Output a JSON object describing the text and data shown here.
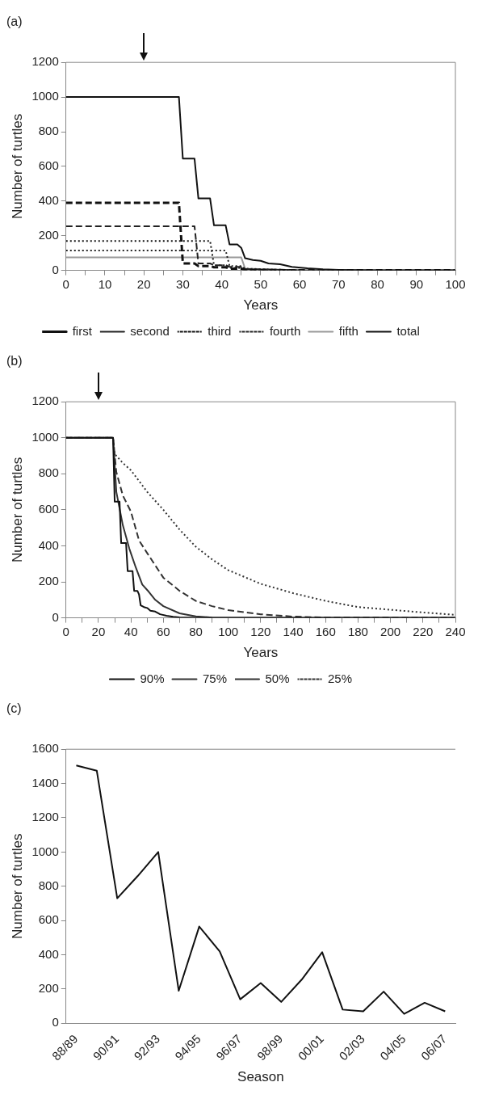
{
  "chart_data": [
    {
      "type": "line",
      "title": "(a)",
      "xlabel": "Years",
      "ylabel": "Number of turtles",
      "xlim": [
        0,
        100
      ],
      "ylim": [
        0,
        1200
      ],
      "yticks": [
        0,
        200,
        400,
        600,
        800,
        1000,
        1200
      ],
      "xticks": [
        0,
        {
          "value": 5,
          "label": null
        },
        10,
        {
          "value": 15,
          "label": null
        },
        20,
        {
          "value": 25,
          "label": null
        },
        30,
        {
          "value": 35,
          "label": null
        },
        40,
        {
          "value": 45,
          "label": null
        },
        50,
        {
          "value": 55,
          "label": null
        },
        60,
        {
          "value": 65,
          "label": null
        },
        70,
        {
          "value": 75,
          "label": null
        },
        80,
        {
          "value": 85,
          "label": null
        },
        90,
        {
          "value": 95,
          "label": null
        },
        100
      ],
      "grid": false,
      "legend": "bottom",
      "marker": "none",
      "series": [
        {
          "name": "first",
          "color": "#111111",
          "line_style": "dashed",
          "x": [
            0,
            29,
            30,
            33,
            34,
            37,
            38,
            41,
            42,
            45,
            46,
            60,
            100
          ],
          "values": [
            390,
            390,
            40,
            40,
            25,
            25,
            18,
            18,
            10,
            10,
            3,
            0,
            0
          ]
        },
        {
          "name": "second",
          "color": "#222222",
          "line_style": "dashed",
          "x": [
            0,
            33,
            34,
            37,
            38,
            41,
            42,
            45,
            46,
            60,
            100
          ],
          "values": [
            255,
            255,
            40,
            40,
            30,
            30,
            20,
            20,
            8,
            0,
            0
          ]
        },
        {
          "name": "third",
          "color": "#111111",
          "line_style": "dotted",
          "x": [
            0,
            37,
            38,
            41,
            42,
            45,
            46,
            60
          ],
          "values": [
            170,
            170,
            30,
            30,
            15,
            15,
            5,
            0
          ]
        },
        {
          "name": "fourth",
          "color": "#222222",
          "line_style": "dotted",
          "x": [
            0,
            41,
            42,
            45,
            46,
            60
          ],
          "values": [
            115,
            115,
            25,
            25,
            10,
            0
          ]
        },
        {
          "name": "fifth",
          "color": "#999999",
          "line_style": "solid",
          "x": [
            0,
            45,
            46,
            60
          ],
          "values": [
            75,
            75,
            10,
            0
          ]
        },
        {
          "name": "total",
          "color": "#111111",
          "line_style": "solid",
          "x": [
            0,
            29,
            30,
            33,
            34,
            37,
            38,
            41,
            42,
            44,
            45,
            46,
            48,
            50,
            52,
            55,
            58,
            62,
            66,
            70,
            80,
            100
          ],
          "values": [
            1000,
            1000,
            645,
            645,
            415,
            415,
            260,
            260,
            150,
            150,
            130,
            70,
            60,
            55,
            40,
            35,
            20,
            12,
            6,
            3,
            0,
            0
          ]
        }
      ]
    },
    {
      "type": "line",
      "title": "(b)",
      "xlabel": "Years",
      "ylabel": "Number of turtles",
      "xlim": [
        0,
        240
      ],
      "ylim": [
        0,
        1200
      ],
      "yticks": [
        0,
        200,
        400,
        600,
        800,
        1000,
        1200
      ],
      "xticks": [
        0,
        {
          "value": 10,
          "label": null
        },
        20,
        {
          "value": 30,
          "label": null
        },
        40,
        {
          "value": 50,
          "label": null
        },
        60,
        {
          "value": 70,
          "label": null
        },
        80,
        {
          "value": 90,
          "label": null
        },
        100,
        {
          "value": 110,
          "label": null
        },
        120,
        {
          "value": 130,
          "label": null
        },
        140,
        {
          "value": 150,
          "label": null
        },
        160,
        {
          "value": 170,
          "label": null
        },
        180,
        {
          "value": 190,
          "label": null
        },
        200,
        {
          "value": 210,
          "label": null
        },
        220,
        {
          "value": 230,
          "label": null
        },
        240
      ],
      "grid": false,
      "legend": "bottom",
      "marker": "none",
      "series": [
        {
          "name": "90%",
          "color": "#111111",
          "line_style": "solid",
          "x": [
            0,
            29,
            30,
            33,
            34,
            37,
            38,
            41,
            42,
            44,
            45,
            46,
            48,
            50,
            52,
            55,
            58,
            62,
            66,
            70,
            80,
            100,
            240
          ],
          "values": [
            1000,
            1000,
            645,
            645,
            415,
            415,
            260,
            260,
            150,
            150,
            130,
            70,
            60,
            55,
            40,
            35,
            20,
            12,
            6,
            3,
            0,
            0,
            0
          ]
        },
        {
          "name": "75%",
          "color": "#333333",
          "line_style": "solid",
          "x": [
            0,
            29,
            31,
            35,
            39,
            43,
            47,
            51,
            55,
            60,
            70,
            80,
            90,
            100,
            240
          ],
          "values": [
            1000,
            1000,
            700,
            515,
            385,
            280,
            185,
            145,
            100,
            65,
            25,
            8,
            2,
            0,
            0
          ]
        },
        {
          "name": "50%",
          "color": "#333333",
          "line_style": "dashed",
          "x": [
            0,
            29,
            31,
            35,
            40,
            45,
            50,
            60,
            70,
            80,
            90,
            100,
            120,
            140,
            160,
            240
          ],
          "values": [
            1000,
            1000,
            810,
            680,
            590,
            430,
            360,
            223,
            150,
            94,
            65,
            43,
            20,
            7,
            2,
            0
          ]
        },
        {
          "name": "25%",
          "color": "#333333",
          "line_style": "dotted",
          "x": [
            0,
            29,
            30,
            35,
            40,
            50,
            60,
            70,
            80,
            90,
            100,
            120,
            140,
            160,
            180,
            200,
            220,
            240
          ],
          "values": [
            1000,
            1000,
            910,
            860,
            820,
            700,
            600,
            490,
            395,
            325,
            265,
            189,
            137,
            94,
            60,
            45,
            30,
            17
          ]
        }
      ]
    },
    {
      "type": "line",
      "title": "(c)",
      "xlabel": "Season",
      "ylabel": "Number of turtles",
      "ylim": [
        0,
        1600
      ],
      "yticks": [
        0,
        200,
        400,
        600,
        800,
        1000,
        1200,
        1400,
        1600
      ],
      "grid": false,
      "marker": "none",
      "categories": [
        "88/89",
        null,
        "90/91",
        null,
        "92/93",
        null,
        "94/95",
        null,
        "96/97",
        null,
        "98/99",
        null,
        "00/01",
        null,
        "02/03",
        null,
        "04/05",
        null,
        "06/07"
      ],
      "series": [
        {
          "color": "#111111",
          "line_style": "solid",
          "values": [
            1505,
            1475,
            730,
            860,
            1000,
            190,
            565,
            420,
            140,
            235,
            125,
            255,
            415,
            80,
            70,
            185,
            55,
            120,
            70
          ]
        }
      ]
    }
  ]
}
